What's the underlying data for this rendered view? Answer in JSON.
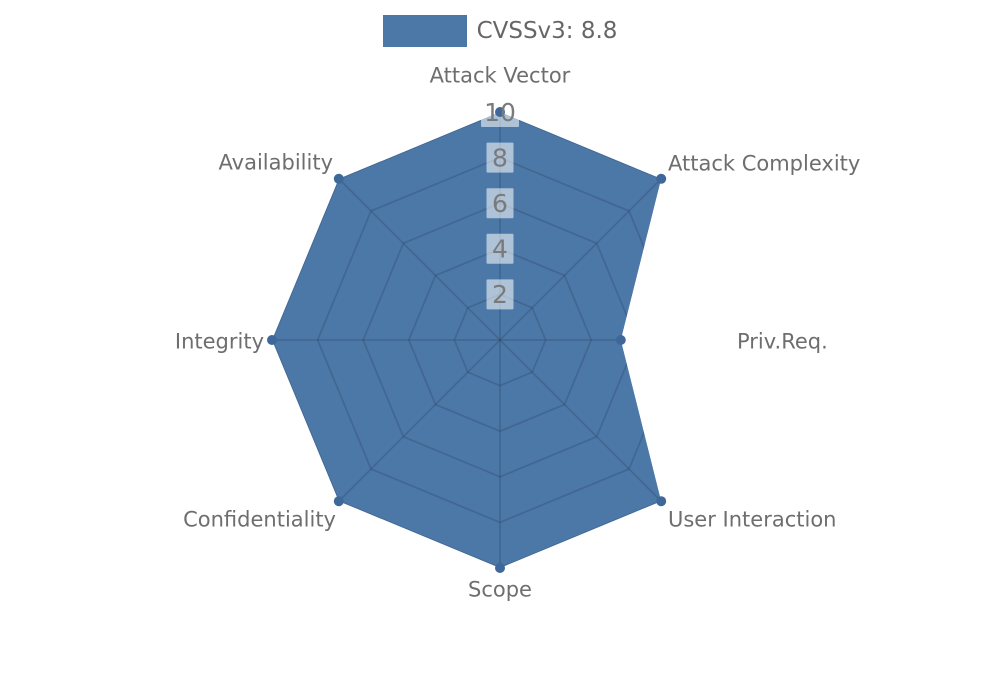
{
  "chart_data": {
    "type": "radar",
    "title": "",
    "grid_shape": "polygon",
    "grid_on": true,
    "rlim": [
      0,
      10
    ],
    "radial_ticks": [
      2,
      4,
      6,
      8,
      10
    ],
    "axes": [
      "Attack Vector",
      "Attack Complexity",
      "Priv.Req.",
      "User Interaction",
      "Scope",
      "Confidentiality",
      "Integrity",
      "Availability"
    ],
    "series": [
      {
        "name": "CVSSv3: 8.8",
        "values": [
          10,
          10,
          5.3,
          10,
          10,
          10,
          10,
          10
        ]
      }
    ],
    "legend": {
      "label": "CVSSv3: 8.8",
      "position": "top-center",
      "swatch_icon": "legend-swatch-icon"
    },
    "colors": {
      "series_fill": "#4C78A8",
      "vertex_marker": "#3E689A",
      "grid_line": "#2F4562",
      "axis_label_text": "#6E6E6E",
      "tick_label_text": "#7A7A7A",
      "tick_label_box": "#FFFFFF",
      "legend_text": "#666666",
      "background": "#FFFFFF"
    }
  }
}
